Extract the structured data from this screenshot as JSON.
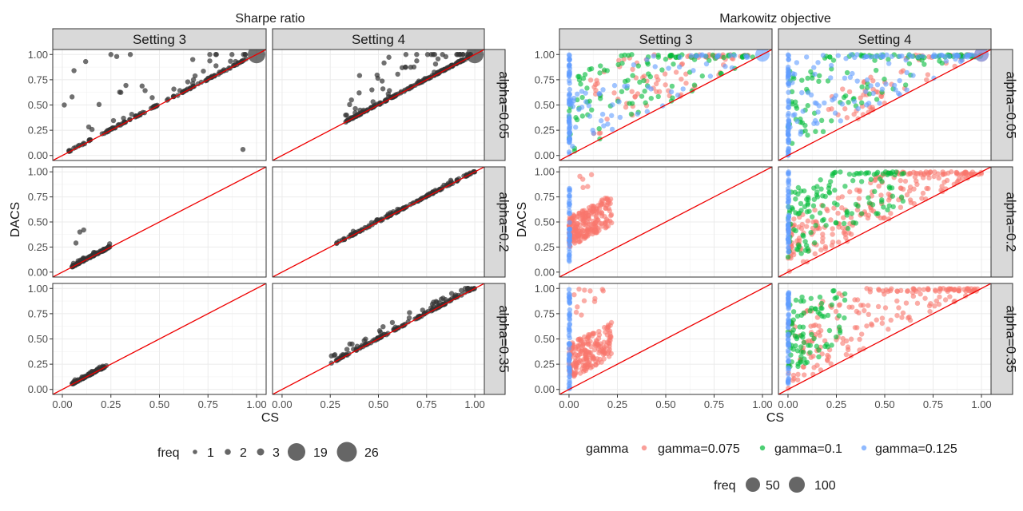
{
  "chart_data": [
    {
      "type": "scatter",
      "title": "Sharpe ratio",
      "xlabel": "CS",
      "ylabel": "DACS",
      "xlim": [
        0,
        1
      ],
      "ylim": [
        0,
        1
      ],
      "x_ticks": [
        "0.00",
        "0.25",
        "0.50",
        "0.75",
        "1.00"
      ],
      "y_ticks": [
        "0.00",
        "0.25",
        "0.50",
        "0.75",
        "1.00"
      ],
      "columns": [
        "Setting 3",
        "Setting 4"
      ],
      "rows": [
        "alpha=0.05",
        "alpha=0.2",
        "alpha=0.35"
      ],
      "reference_line": "y = x",
      "point_color": "#333333",
      "legend": {
        "title": "freq",
        "entries": [
          "1",
          "2",
          "3",
          "19",
          "26"
        ]
      },
      "panels": [
        {
          "column": "Setting 3",
          "row": "alpha=0.05",
          "n": 150,
          "cs": [
            0.03,
            0.95
          ],
          "gap": [
            0,
            0.55
          ],
          "outliers": [
            [
              0.06,
              0.84
            ],
            [
              0.01,
              0.5
            ],
            [
              0.05,
              0.58
            ],
            [
              0.12,
              0.93
            ],
            [
              0.93,
              0.06
            ],
            [
              0.25,
              1.0
            ],
            [
              0.28,
              0.98
            ],
            [
              0.35,
              1.0
            ]
          ],
          "big": [
            [
              1.0,
              1.0
            ]
          ]
        },
        {
          "column": "Setting 4",
          "row": "alpha=0.05",
          "n": 200,
          "cs": [
            0.33,
            0.98
          ],
          "gap": [
            0,
            0.45
          ],
          "outliers": [
            [
              0.33,
              0.4
            ],
            [
              0.36,
              0.55
            ],
            [
              0.4,
              0.62
            ]
          ],
          "big": [
            [
              1.0,
              1.0
            ]
          ]
        },
        {
          "column": "Setting 3",
          "row": "alpha=0.2",
          "n": 90,
          "cs": [
            0.05,
            0.25
          ],
          "gap": [
            0,
            0.04
          ],
          "outliers": [
            [
              0.09,
              0.4
            ],
            [
              0.11,
              0.42
            ],
            [
              0.07,
              0.29
            ]
          ],
          "big": []
        },
        {
          "column": "Setting 4",
          "row": "alpha=0.2",
          "n": 140,
          "cs": [
            0.28,
            1.0
          ],
          "gap": [
            0,
            0.04
          ],
          "outliers": [],
          "big": []
        },
        {
          "column": "Setting 3",
          "row": "alpha=0.35",
          "n": 90,
          "cs": [
            0.05,
            0.23
          ],
          "gap": [
            0,
            0.03
          ],
          "outliers": [],
          "big": []
        },
        {
          "column": "Setting 4",
          "row": "alpha=0.35",
          "n": 150,
          "cs": [
            0.25,
            1.0
          ],
          "gap": [
            0,
            0.1
          ],
          "outliers": [
            [
              0.88,
              0.95
            ],
            [
              0.93,
              0.98
            ],
            [
              0.95,
              1.0
            ]
          ],
          "big": []
        }
      ]
    },
    {
      "type": "scatter",
      "title": "Markowitz objective",
      "xlabel": "CS",
      "ylabel": "DACS",
      "xlim": [
        0,
        1
      ],
      "ylim": [
        0,
        1
      ],
      "x_ticks": [
        "0.00",
        "0.25",
        "0.50",
        "0.75",
        "1.00"
      ],
      "y_ticks": [
        "0.00",
        "0.25",
        "0.50",
        "0.75",
        "1.00"
      ],
      "columns": [
        "Setting 3",
        "Setting 4"
      ],
      "rows": [
        "alpha=0.05",
        "alpha=0.2",
        "alpha=0.35"
      ],
      "reference_line": "y = x",
      "series": [
        {
          "name": "gamma=0.075",
          "color": "#F8766D"
        },
        {
          "name": "gamma=0.1",
          "color": "#00BA38"
        },
        {
          "name": "gamma=0.125",
          "color": "#619CFF"
        }
      ],
      "legend": {
        "title": "gamma",
        "entries": [
          "gamma=0.075",
          "gamma=0.1",
          "gamma=0.125"
        ]
      },
      "legend2": {
        "title": "freq",
        "entries": [
          "50",
          "100"
        ]
      },
      "panels": [
        {
          "column": "Setting 3",
          "row": "alpha=0.05",
          "groups": [
            {
              "series": "gamma=0.075",
              "n": 90,
              "cs": [
                0.1,
                0.95
              ],
              "gap": [
                0.0,
                0.7
              ]
            },
            {
              "series": "gamma=0.1",
              "n": 110,
              "cs": [
                0.0,
                0.95
              ],
              "gap": [
                0.0,
                0.75
              ]
            },
            {
              "series": "gamma=0.125",
              "n": 70,
              "cs": [
                0.0,
                0.95
              ],
              "gap": [
                0.0,
                0.6
              ]
            }
          ],
          "column_points": [
            {
              "series": "gamma=0.125",
              "x": 0.0,
              "y": [
                0.0,
                1.0
              ],
              "n": 55
            }
          ],
          "big": [
            [
              1.0,
              1.0,
              "gamma=0.125"
            ]
          ]
        },
        {
          "column": "Setting 4",
          "row": "alpha=0.05",
          "groups": [
            {
              "series": "gamma=0.075",
              "n": 60,
              "cs": [
                0.2,
                1.0
              ],
              "gap": [
                0.0,
                0.4
              ]
            },
            {
              "series": "gamma=0.1",
              "n": 120,
              "cs": [
                0.0,
                1.0
              ],
              "gap": [
                0.05,
                0.9
              ]
            },
            {
              "series": "gamma=0.125",
              "n": 110,
              "cs": [
                0.0,
                1.0
              ],
              "gap": [
                0.0,
                0.9
              ]
            }
          ],
          "column_points": [
            {
              "series": "gamma=0.125",
              "x": 0.0,
              "y": [
                0.0,
                1.0
              ],
              "n": 55
            }
          ],
          "big": [
            [
              1.0,
              1.0,
              "gamma=0.075"
            ],
            [
              1.0,
              1.0,
              "gamma=0.125"
            ]
          ]
        },
        {
          "column": "Setting 3",
          "row": "alpha=0.2",
          "groups": [
            {
              "series": "gamma=0.075",
              "n": 230,
              "cs": [
                0.0,
                0.22
              ],
              "gap": [
                0.25,
                0.55
              ]
            },
            {
              "series": "gamma=0.075",
              "n": 5,
              "cs": [
                0.05,
                0.15
              ],
              "gap": [
                0.75,
                0.95
              ]
            }
          ],
          "column_points": [
            {
              "series": "gamma=0.125",
              "x": 0.0,
              "y": [
                0.1,
                0.85
              ],
              "n": 40
            }
          ],
          "big": []
        },
        {
          "column": "Setting 4",
          "row": "alpha=0.2",
          "groups": [
            {
              "series": "gamma=0.075",
              "n": 230,
              "cs": [
                0.0,
                1.0
              ],
              "gap": [
                0.0,
                0.5
              ]
            },
            {
              "series": "gamma=0.1",
              "n": 140,
              "cs": [
                0.0,
                0.6
              ],
              "gap": [
                0.1,
                0.8
              ]
            }
          ],
          "column_points": [
            {
              "series": "gamma=0.125",
              "x": 0.0,
              "y": [
                0.2,
                1.0
              ],
              "n": 50
            }
          ],
          "big": []
        },
        {
          "column": "Setting 3",
          "row": "alpha=0.35",
          "groups": [
            {
              "series": "gamma=0.075",
              "n": 200,
              "cs": [
                0.0,
                0.22
              ],
              "gap": [
                0.1,
                0.45
              ]
            },
            {
              "series": "gamma=0.075",
              "n": 12,
              "cs": [
                0.02,
                0.18
              ],
              "gap": [
                0.6,
                0.95
              ]
            }
          ],
          "column_points": [
            {
              "series": "gamma=0.125",
              "x": 0.0,
              "y": [
                0.0,
                1.0
              ],
              "n": 55
            }
          ],
          "big": []
        },
        {
          "column": "Setting 4",
          "row": "alpha=0.35",
          "groups": [
            {
              "series": "gamma=0.075",
              "n": 200,
              "cs": [
                0.0,
                1.0
              ],
              "gap": [
                0.0,
                0.7
              ]
            },
            {
              "series": "gamma=0.1",
              "n": 90,
              "cs": [
                0.0,
                0.3
              ],
              "gap": [
                0.15,
                0.85
              ]
            }
          ],
          "column_points": [
            {
              "series": "gamma=0.125",
              "x": 0.0,
              "y": [
                0.05,
                1.0
              ],
              "n": 55
            }
          ],
          "big": []
        }
      ]
    }
  ]
}
